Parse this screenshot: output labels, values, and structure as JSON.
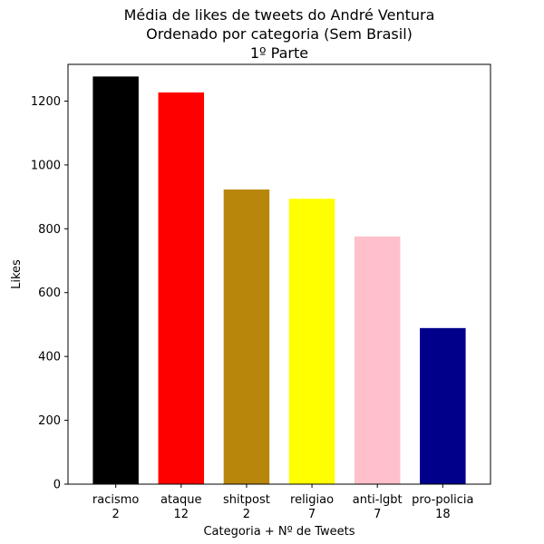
{
  "chart_data": {
    "type": "bar",
    "title_lines": [
      "Média de likes de tweets do André Ventura",
      "Ordenado por categoria (Sem Brasil)",
      "1º Parte"
    ],
    "xlabel": "Categoria + Nº de Tweets",
    "ylabel": "Likes",
    "categories": [
      {
        "name": "racismo",
        "count": "2"
      },
      {
        "name": "ataque",
        "count": "12"
      },
      {
        "name": "shitpost",
        "count": "2"
      },
      {
        "name": "religiao",
        "count": "7"
      },
      {
        "name": "anti-lgbt",
        "count": "7"
      },
      {
        "name": "pro-policia",
        "count": "18"
      }
    ],
    "values": [
      1277,
      1227,
      923,
      894,
      776,
      489
    ],
    "colors": [
      "#000000",
      "#ff0000",
      "#b8860b",
      "#ffff00",
      "#ffc0cb",
      "#00008b"
    ],
    "ylim": [
      0,
      1315
    ],
    "yticks": [
      0,
      200,
      400,
      600,
      800,
      1000,
      1200
    ],
    "grid": false,
    "legend": "none"
  }
}
